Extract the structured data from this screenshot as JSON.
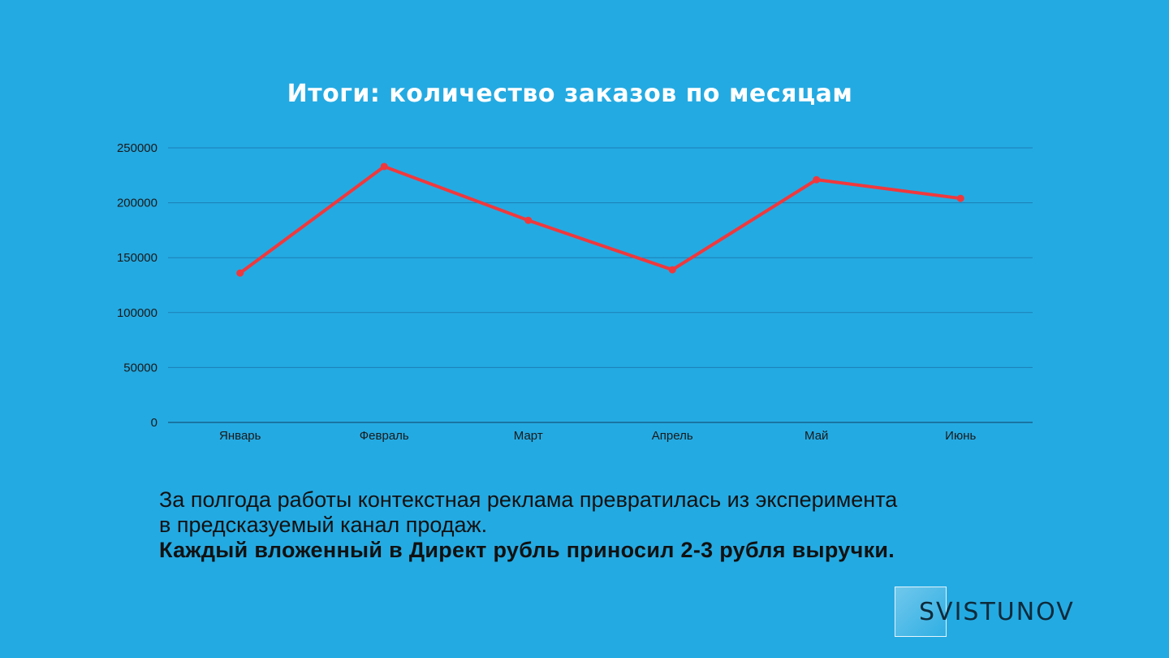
{
  "chart_data": {
    "type": "line",
    "title": "Итоги: количество заказов по месяцам",
    "categories": [
      "Январь",
      "Февраль",
      "Март",
      "Апрель",
      "Май",
      "Июнь"
    ],
    "series": [
      {
        "values": [
          136000,
          233000,
          184000,
          139000,
          221000,
          204000
        ]
      }
    ],
    "ylim": [
      0,
      250000
    ],
    "yticks": [
      "0",
      "50000",
      "100000",
      "150000",
      "200000",
      "250000"
    ],
    "grid": true,
    "legend": "none",
    "colors": {
      "line": "#f0383c",
      "grid": "#1b7fb5",
      "axis": "#17628c",
      "tick_text": "#1a1a1a"
    }
  },
  "caption": {
    "line1": "За полгода работы контекстная реклама превратилась из эксперимента",
    "line2": "в предсказуемый канал продаж.",
    "line3": "Каждый вложенный в Директ рубль приносил 2-3 рубля выручки."
  },
  "logo": {
    "text": "SVISTUNOV"
  },
  "colors": {
    "background": "#24aae2",
    "title": "#ffffff"
  }
}
